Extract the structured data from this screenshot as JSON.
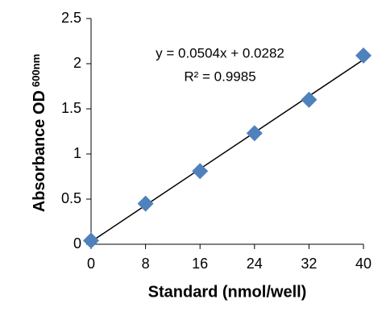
{
  "chart_data": {
    "type": "scatter",
    "xlabel": "Standard (nmol/well)",
    "ylabel": "Absorbance OD",
    "ylabel_subscript": "600nm",
    "annotations": [
      "y = 0.0504x + 0.0282",
      "R² = 0.9985"
    ],
    "trendline": {
      "slope": 0.0504,
      "intercept": 0.0282,
      "color": "#000000"
    },
    "x": [
      0,
      8,
      16,
      24,
      32,
      40
    ],
    "series": [
      {
        "name": "Standard",
        "color": "#4f81bd",
        "values": [
          0.04,
          0.45,
          0.81,
          1.23,
          1.6,
          2.09
        ]
      }
    ],
    "xlim": [
      0,
      40
    ],
    "xticks": [
      0,
      8,
      16,
      24,
      32,
      40
    ],
    "ylim": [
      0,
      2.5
    ],
    "yticks": [
      0,
      0.5,
      1,
      1.5,
      2,
      2.5
    ],
    "grid": false
  }
}
